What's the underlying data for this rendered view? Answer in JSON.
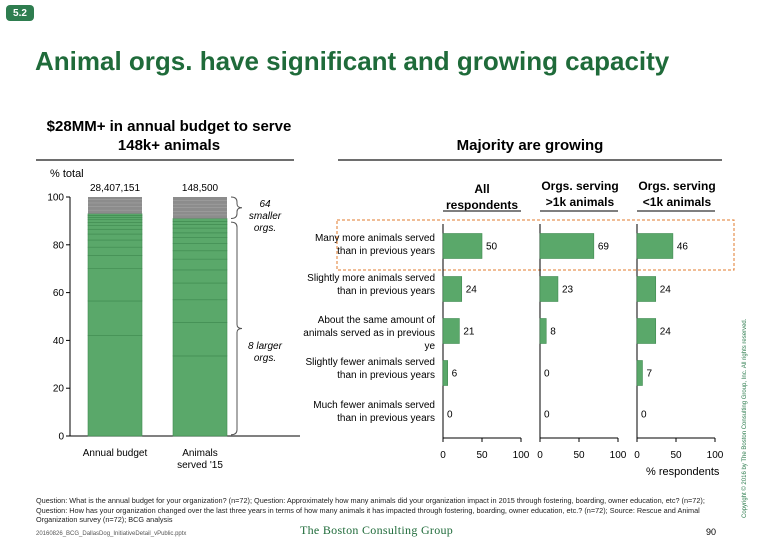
{
  "badge": "5.2",
  "title": "Animal orgs. have significant and growing capacity",
  "left": {
    "title": "$28MM+ in annual budget to serve 148k+ animals",
    "y_unit": "% total",
    "brace_small": "64 smaller orgs.",
    "brace_large": "8 larger orgs."
  },
  "right": {
    "title": "Majority are growing",
    "x_unit": "% respondents"
  },
  "footnote": "Question: What is the annual budget for your organization? (n=72); Question: Approximately how many animals did your organization impact in 2015 through fostering, boarding, owner education, etc? (n=72); Question: How has your organization changed over the last three years in terms of how many animals it has impacted through fostering, boarding, owner education, etc.? (n=72); Source: Rescue and Animal Organization survey (n=72); BCG analysis",
  "file_name": "20160826_BCG_DallasDog_InitiativeDetail_vPublic.pptx",
  "logo": "The Boston Consulting Group",
  "page_number": "90",
  "copyright": "Copyright © 2016 by The Boston Consulting Group, Inc. All rights reserved.",
  "colors": {
    "bar": "#5aa86a",
    "bar_edge": "#3f8a50",
    "title": "#1f6b3a",
    "highlight": "#e07b2c",
    "gray_bar": "#8c8c8c"
  },
  "chart_data": [
    {
      "type": "bar",
      "subtype": "stacked-100",
      "categories": [
        "Annual budget",
        "Animals served '15"
      ],
      "totals": [
        "28,407,151",
        "148,500"
      ],
      "ylabel": "% total",
      "ylim": [
        0,
        100
      ],
      "yticks": [
        0,
        20,
        40,
        60,
        80,
        100
      ],
      "stacked_segments": [
        [
          42,
          56.5,
          70,
          75.5,
          79,
          82,
          84.5,
          86.5,
          88,
          89.3,
          90.5,
          91.5,
          92.3,
          93
        ],
        [
          33.5,
          47.5,
          57,
          64,
          69.5,
          74,
          77.5,
          80.5,
          83,
          85,
          87,
          88.5,
          89.8,
          91
        ]
      ],
      "gray_from": [
        93,
        91
      ],
      "annotations": [
        "64 smaller orgs.",
        "8 larger orgs."
      ]
    },
    {
      "type": "bar",
      "orientation": "horizontal",
      "categories": [
        "Many more animals served than in previous years",
        "Slightly more animals served than in previous years",
        "About the same amount of animals served as in previous ye",
        "Slightly fewer animals served than in previous years",
        "Much fewer animals served than in previous years"
      ],
      "series": [
        {
          "name": "All respondents",
          "values": [
            50,
            24,
            21,
            6,
            0
          ]
        },
        {
          "name": "Orgs. serving >1k animals",
          "values": [
            69,
            23,
            8,
            0,
            0
          ]
        },
        {
          "name": "Orgs. serving <1k animals",
          "values": [
            46,
            24,
            24,
            7,
            0
          ]
        }
      ],
      "xlim": [
        0,
        100
      ],
      "xticks": [
        0,
        50,
        100
      ],
      "xlabel": "% respondents",
      "highlight": "Many more animals served than in previous years"
    }
  ]
}
